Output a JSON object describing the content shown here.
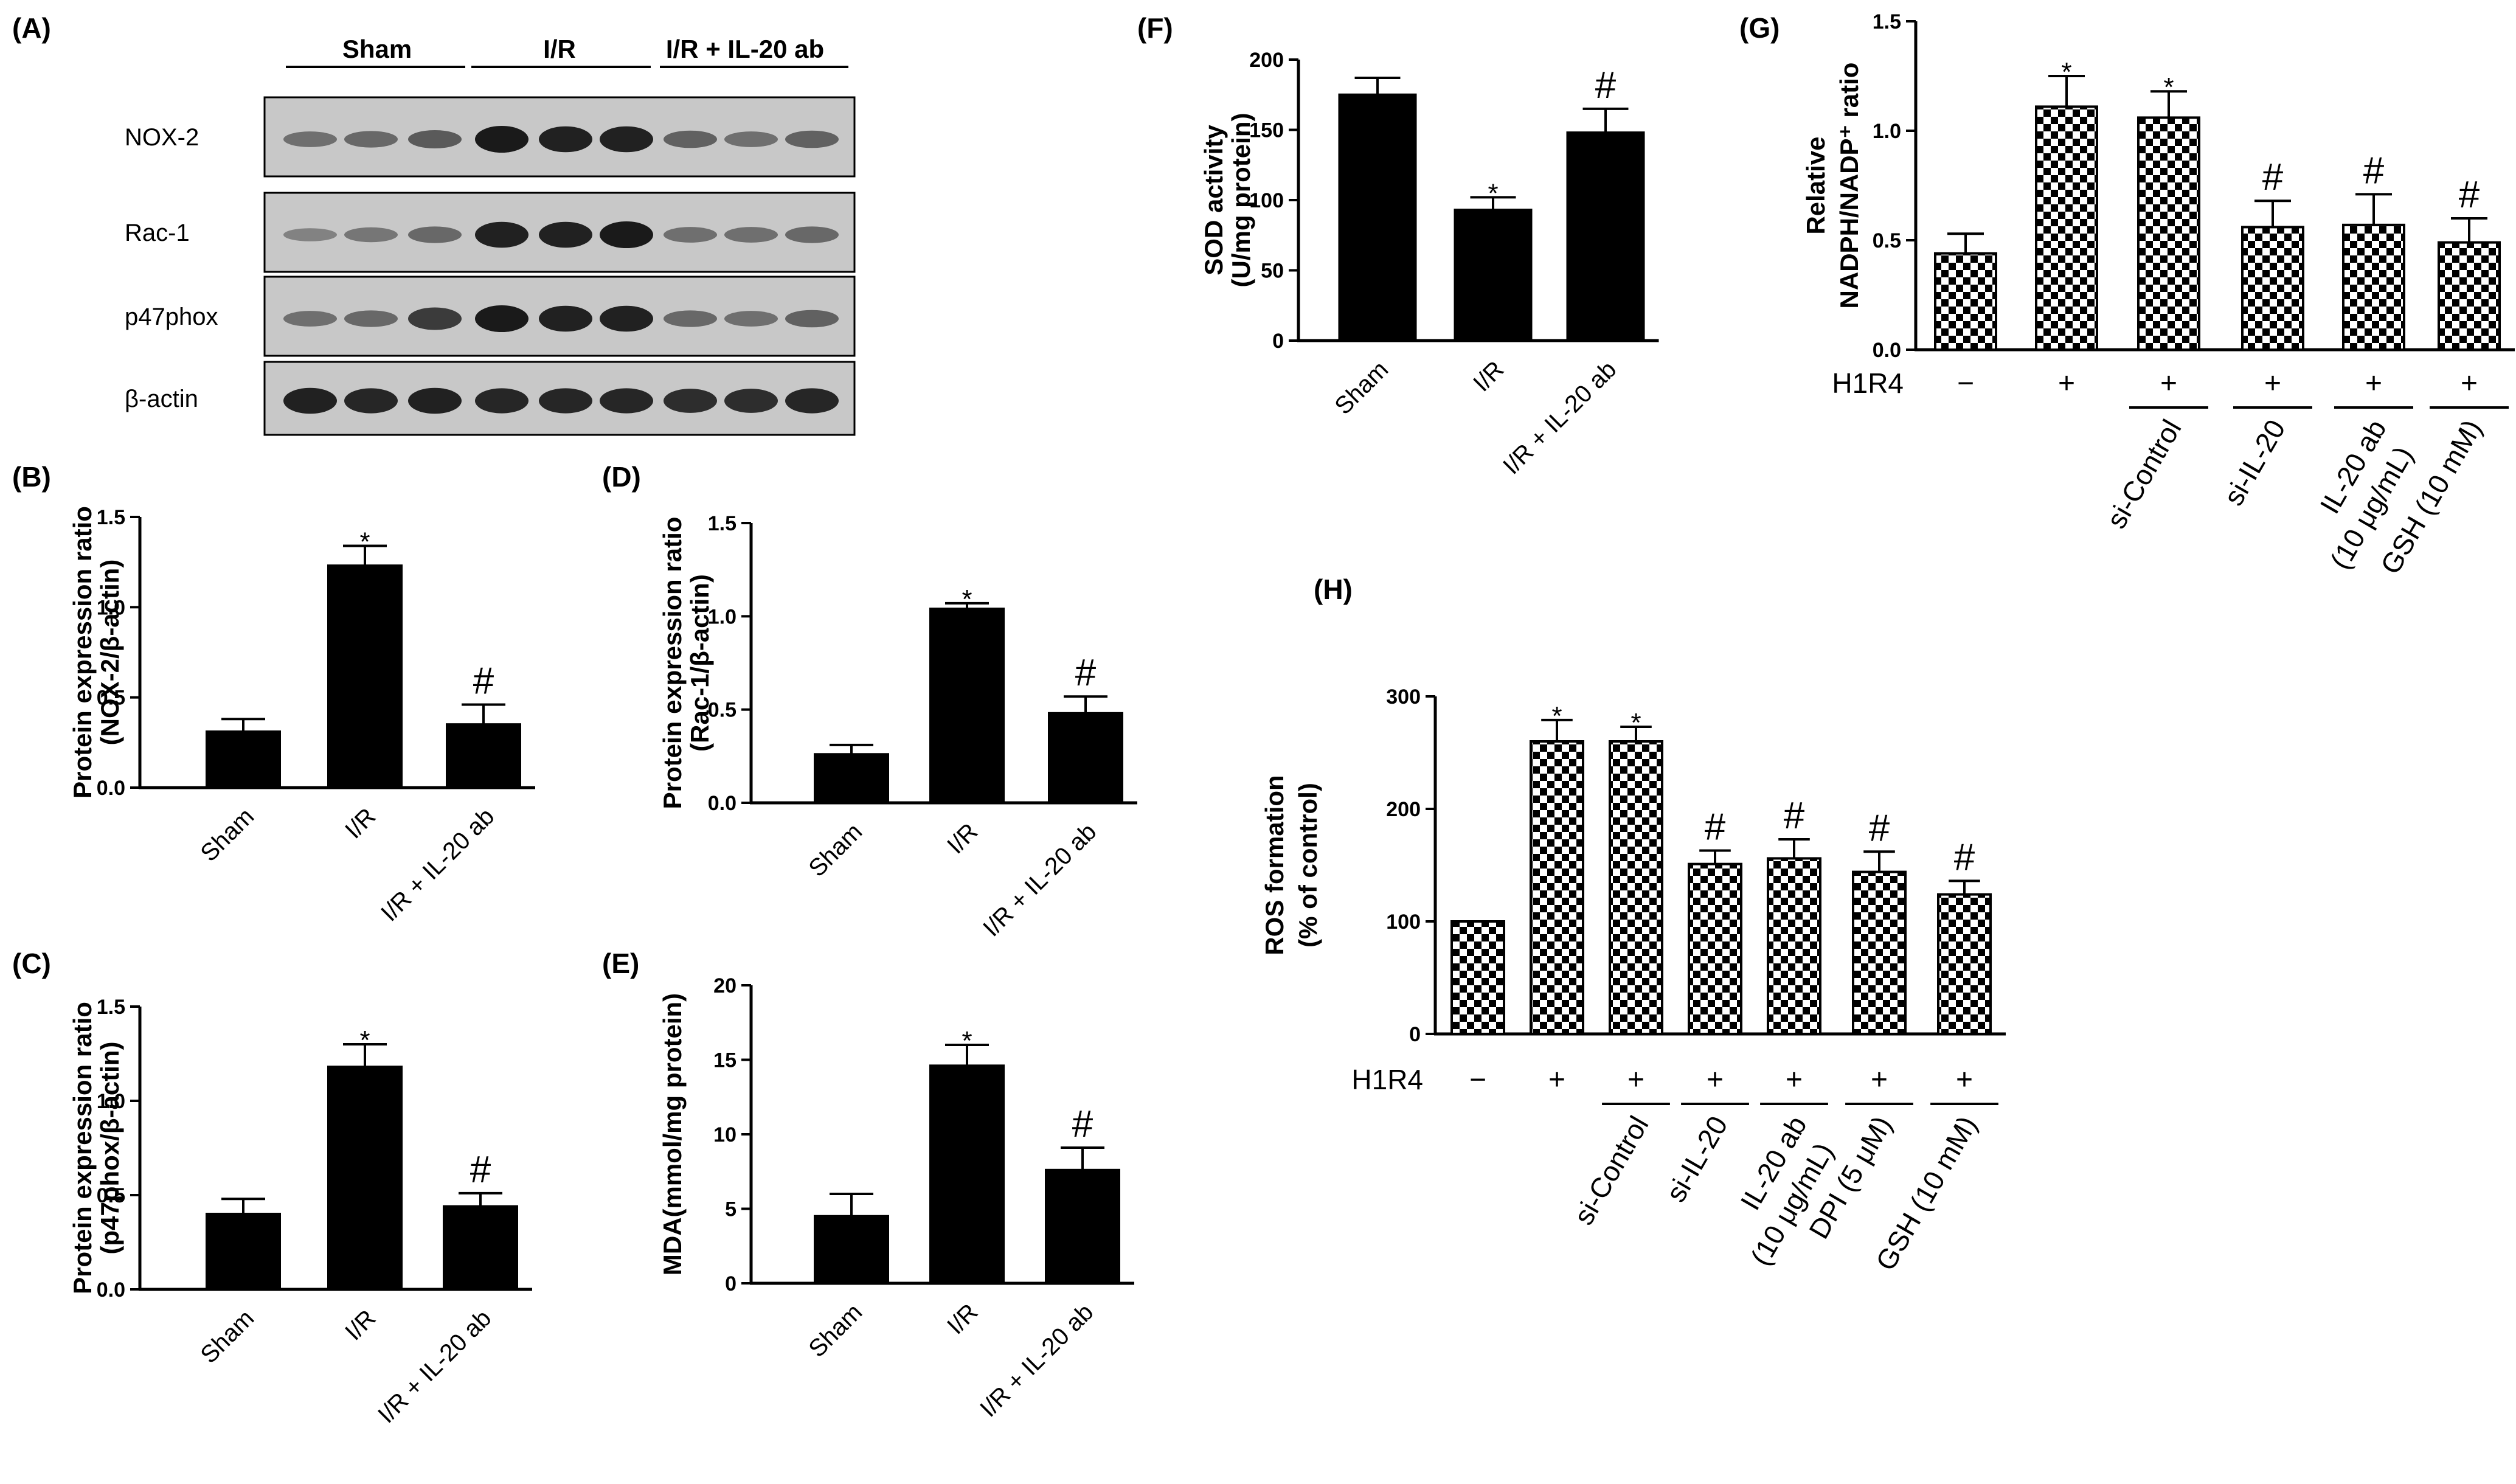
{
  "colors": {
    "bar_solid": "#000000",
    "checker_a": "#000000",
    "checker_b": "#ffffff",
    "blot_bg": "#c8c8c8",
    "band": "#1a1a1a"
  },
  "panels": {
    "A": {
      "label": "(A)",
      "groups": [
        "Sham",
        "I/R",
        "I/R + IL-20 ab"
      ],
      "rows": [
        {
          "name": "NOX-2",
          "intensity": [
            0.35,
            0.4,
            0.5,
            1.0,
            0.95,
            0.95,
            0.45,
            0.35,
            0.45
          ]
        },
        {
          "name": "Rac-1",
          "intensity": [
            0.2,
            0.3,
            0.4,
            0.95,
            0.95,
            1.0,
            0.35,
            0.35,
            0.4
          ]
        },
        {
          "name": "p47phox",
          "intensity": [
            0.35,
            0.4,
            0.75,
            1.0,
            0.95,
            0.95,
            0.4,
            0.35,
            0.45
          ]
        },
        {
          "name": "β-actin",
          "intensity": [
            0.95,
            0.9,
            0.95,
            0.9,
            0.9,
            0.9,
            0.85,
            0.85,
            0.9
          ]
        }
      ]
    }
  },
  "chart_data": [
    {
      "id": "B",
      "label": "(B)",
      "type": "bar",
      "ylabel": [
        "Protein expression ratio",
        "(NOX-2/β-actin)"
      ],
      "categories": [
        "Sham",
        "I/R",
        "I/R + IL-20 ab"
      ],
      "values": [
        0.31,
        1.23,
        0.35
      ],
      "errors": [
        0.07,
        0.11,
        0.11
      ],
      "annotations": [
        "",
        "*",
        "#"
      ],
      "ylim": [
        0,
        1.5
      ],
      "ticks": [
        "0.0",
        "0.5",
        "1.0",
        "1.5"
      ]
    },
    {
      "id": "C",
      "label": "(C)",
      "type": "bar",
      "ylabel": [
        "Protein expression ratio",
        "(p47phox/β-actin)"
      ],
      "categories": [
        "Sham",
        "I/R",
        "I/R + IL-20 ab"
      ],
      "values": [
        0.4,
        1.18,
        0.44
      ],
      "errors": [
        0.08,
        0.12,
        0.07
      ],
      "annotations": [
        "",
        "*",
        "#"
      ],
      "ylim": [
        0,
        1.5
      ],
      "ticks": [
        "0.0",
        "0.5",
        "1.0",
        "1.5"
      ]
    },
    {
      "id": "D",
      "label": "(D)",
      "type": "bar",
      "ylabel": [
        "Protein expression ratio",
        "(Rac-1/β-actin)"
      ],
      "categories": [
        "Sham",
        "I/R",
        "I/R + IL-20 ab"
      ],
      "values": [
        0.26,
        1.04,
        0.48
      ],
      "errors": [
        0.05,
        0.03,
        0.09
      ],
      "annotations": [
        "",
        "*",
        "#"
      ],
      "ylim": [
        0,
        1.5
      ],
      "ticks": [
        "0.0",
        "0.5",
        "1.0",
        "1.5"
      ]
    },
    {
      "id": "E",
      "label": "(E)",
      "type": "bar",
      "ylabel": [
        "MDA(mmol/mg protein)"
      ],
      "categories": [
        "Sham",
        "I/R",
        "I/R + IL-20 ab"
      ],
      "values": [
        4.5,
        14.6,
        7.6
      ],
      "errors": [
        1.5,
        1.4,
        1.5
      ],
      "annotations": [
        "",
        "*",
        "#"
      ],
      "ylim": [
        0,
        20
      ],
      "ticks": [
        "0",
        "5",
        "10",
        "15",
        "20"
      ]
    },
    {
      "id": "F",
      "label": "(F)",
      "type": "bar",
      "ylabel": [
        "SOD activity",
        "(U/mg protein)"
      ],
      "categories": [
        "Sham",
        "I/R",
        "I/R + IL-20 ab"
      ],
      "values": [
        175,
        93,
        148
      ],
      "errors": [
        12,
        9,
        17
      ],
      "annotations": [
        "",
        "*",
        "#"
      ],
      "ylim": [
        0,
        200
      ],
      "ticks": [
        "0",
        "50",
        "100",
        "150",
        "200"
      ]
    },
    {
      "id": "G",
      "label": "(G)",
      "type": "bar",
      "ylabel": [
        "Relative",
        "NADPH/NADP⁺ ratio"
      ],
      "row_label": "H1R4",
      "signs": [
        "−",
        "+",
        "+",
        "+",
        "+",
        "+"
      ],
      "categories": [
        "",
        "",
        "si-Control",
        "si-IL-20",
        "IL-20 ab\n(10 μg/mL)",
        "GSH (10 mM)"
      ],
      "values": [
        0.44,
        1.11,
        1.06,
        0.56,
        0.57,
        0.49
      ],
      "errors": [
        0.09,
        0.14,
        0.12,
        0.12,
        0.14,
        0.11
      ],
      "annotations": [
        "",
        "*",
        "*",
        "#",
        "#",
        "#"
      ],
      "ylim": [
        0,
        1.5
      ],
      "ticks": [
        "0.0",
        "0.5",
        "1.0",
        "1.5"
      ]
    },
    {
      "id": "H",
      "label": "(H)",
      "type": "bar",
      "ylabel": [
        "ROS formation",
        "(% of control)"
      ],
      "row_label": "H1R4",
      "signs": [
        "−",
        "+",
        "+",
        "+",
        "+",
        "+",
        "+"
      ],
      "categories": [
        "",
        "",
        "si-Control",
        "si-IL-20",
        "IL-20 ab\n(10 μg/mL)",
        "DPI (5 μM)",
        "GSH (10 mM)"
      ],
      "values": [
        100,
        260,
        260,
        151,
        156,
        144,
        124
      ],
      "errors": [
        0,
        19,
        13,
        12,
        17,
        18,
        12
      ],
      "annotations": [
        "",
        "*",
        "*",
        "#",
        "#",
        "#",
        "#"
      ],
      "ylim": [
        0,
        300
      ],
      "ticks": [
        "0",
        "100",
        "200",
        "300"
      ]
    }
  ]
}
